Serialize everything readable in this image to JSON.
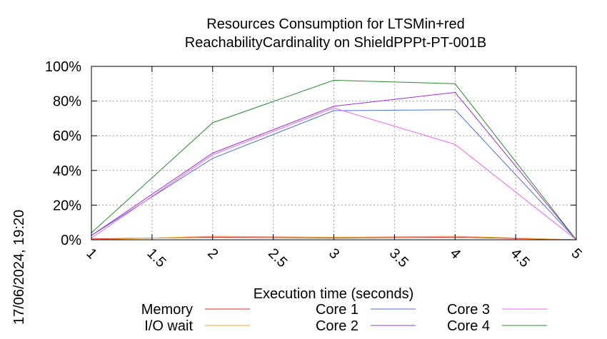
{
  "chart_data": {
    "type": "line",
    "title_line1": "Resources Consumption for LTSMin+red",
    "title_line2": "ReachabilityCardinality on ShieldPPPt-PT-001B",
    "xlabel": "Execution time (seconds)",
    "ylabel": "",
    "side_label": "17/06/2024, 19:20",
    "xlim": [
      1,
      5
    ],
    "ylim": [
      0,
      100
    ],
    "x_ticks": [
      "1",
      "1.5",
      "2",
      "2.5",
      "3",
      "3.5",
      "4",
      "4.5",
      "5"
    ],
    "y_ticks": [
      "0%",
      "20%",
      "40%",
      "60%",
      "80%",
      "100%"
    ],
    "grid": true,
    "legend_position": "bottom",
    "x": [
      1,
      2,
      3,
      4,
      5
    ],
    "series": [
      {
        "name": "Memory",
        "color": "#e8281f",
        "values": [
          0.5,
          1.5,
          1.0,
          1.5,
          0
        ]
      },
      {
        "name": "I/O wait",
        "color": "#f0a020",
        "values": [
          0,
          2.0,
          1.5,
          2.0,
          0
        ]
      },
      {
        "name": "Core 1",
        "color": "#4a6fe0",
        "values": [
          2.5,
          47,
          74.5,
          75,
          0
        ]
      },
      {
        "name": "Core 2",
        "color": "#9a30e0",
        "values": [
          2.5,
          50,
          77,
          85,
          0
        ]
      },
      {
        "name": "Core 3",
        "color": "#f060f0",
        "values": [
          1,
          49,
          76,
          55,
          0
        ]
      },
      {
        "name": "Core 4",
        "color": "#2a8a2a",
        "values": [
          4,
          67.5,
          92,
          90,
          0
        ]
      }
    ]
  }
}
